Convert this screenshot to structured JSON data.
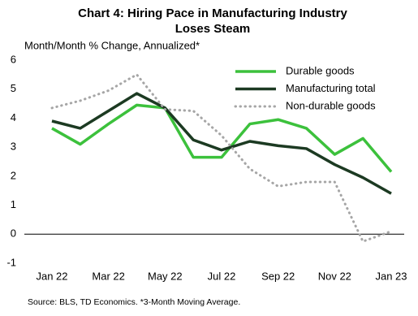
{
  "chart_data": {
    "type": "line",
    "title": [
      "Chart 4: Hiring Pace in Manufacturing Industry",
      "Loses Steam"
    ],
    "y_axis_label": "Month/Month  % Change, Annualized*",
    "source": "Source: BLS, TD Economics.  *3-Month Moving Average.",
    "categories": [
      "Jan 22",
      null,
      "Mar 22",
      null,
      "May 22",
      null,
      "Jul 22",
      null,
      "Sep 22",
      null,
      "Nov 22",
      null,
      "Jan 23"
    ],
    "series": [
      {
        "name": "Durable goods",
        "color": "#3cc13c",
        "style": "solid",
        "values": [
          3.65,
          3.1,
          3.8,
          4.45,
          4.35,
          2.65,
          2.65,
          3.8,
          3.95,
          3.65,
          2.75,
          3.3,
          2.15
        ]
      },
      {
        "name": "Manufacturing total",
        "color": "#1c3a22",
        "style": "solid",
        "values": [
          3.9,
          3.65,
          4.25,
          4.85,
          4.35,
          3.25,
          2.9,
          3.2,
          3.05,
          2.95,
          2.4,
          1.95,
          1.4
        ]
      },
      {
        "name": "Non-durable goods",
        "color": "#a6a6a6",
        "style": "dotted",
        "values": [
          4.35,
          4.6,
          4.95,
          5.5,
          4.3,
          4.25,
          3.4,
          2.25,
          1.65,
          1.8,
          1.8,
          -0.25,
          0.1
        ]
      }
    ],
    "ylim": [
      -1,
      6
    ],
    "yticks": [
      -1,
      0,
      1,
      2,
      3,
      4,
      5,
      6
    ],
    "grid": false,
    "legend": "upper right"
  }
}
